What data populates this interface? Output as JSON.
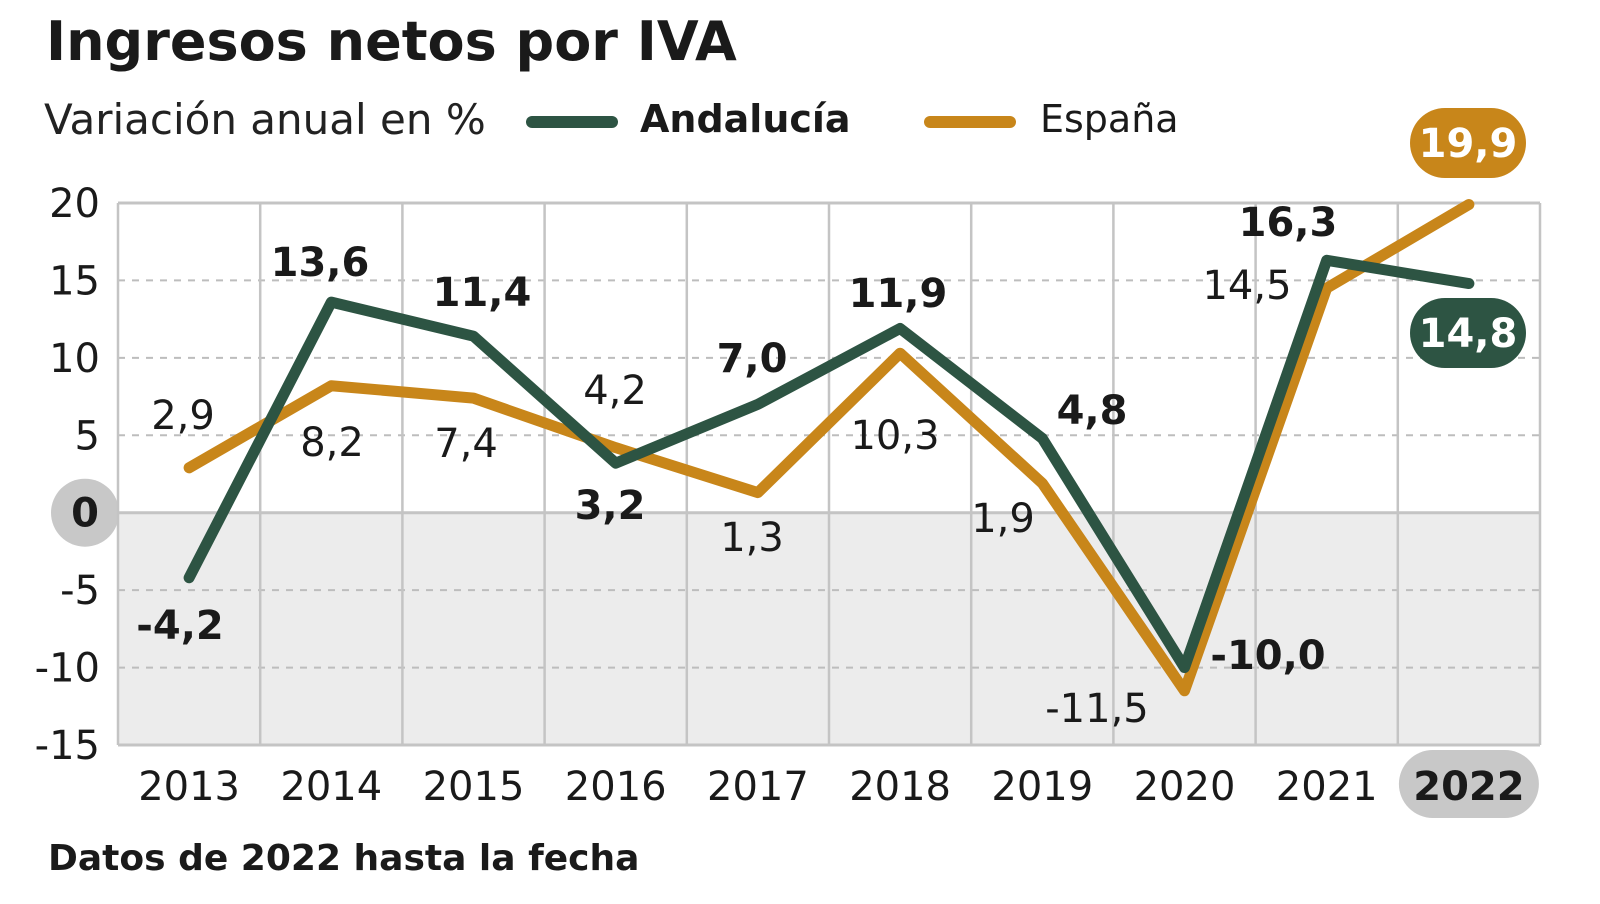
{
  "chart_data": {
    "type": "line",
    "title": "Ingresos netos por IVA",
    "subtitle": "Variación anual en %",
    "footnote": "Datos de 2022 hasta la fecha",
    "categories": [
      "2013",
      "2014",
      "2015",
      "2016",
      "2017",
      "2018",
      "2019",
      "2020",
      "2021",
      "2022"
    ],
    "highlighted_category": "2022",
    "series": [
      {
        "name": "Andalucía",
        "color": "#2d5443",
        "values": [
          -4.2,
          13.6,
          11.4,
          3.2,
          7.0,
          11.9,
          4.8,
          -10.0,
          16.3,
          14.8
        ],
        "labels": [
          "-4,2",
          "13,6",
          "11,4",
          "3,2",
          "7,0",
          "11,9",
          "4,8",
          "-10,0",
          "16,3",
          "14,8"
        ]
      },
      {
        "name": "España",
        "color": "#c8861a",
        "values": [
          2.9,
          8.2,
          7.4,
          4.2,
          1.3,
          10.3,
          1.9,
          -11.5,
          14.5,
          19.9
        ],
        "labels": [
          "2,9",
          "8,2",
          "7,4",
          "4,2",
          "1,3",
          "10,3",
          "1,9",
          "-11,5",
          "14,5",
          "19,9"
        ]
      }
    ],
    "ylim": [
      -15,
      20
    ],
    "yticks": [
      20,
      15,
      10,
      5,
      0,
      -5,
      -10,
      -15
    ],
    "ytick_labels": [
      "20",
      "15",
      "10",
      "5",
      "0",
      "-5",
      "-10",
      "-15"
    ],
    "grid": true,
    "negative_region_shaded": true,
    "legend_placement": "top"
  }
}
